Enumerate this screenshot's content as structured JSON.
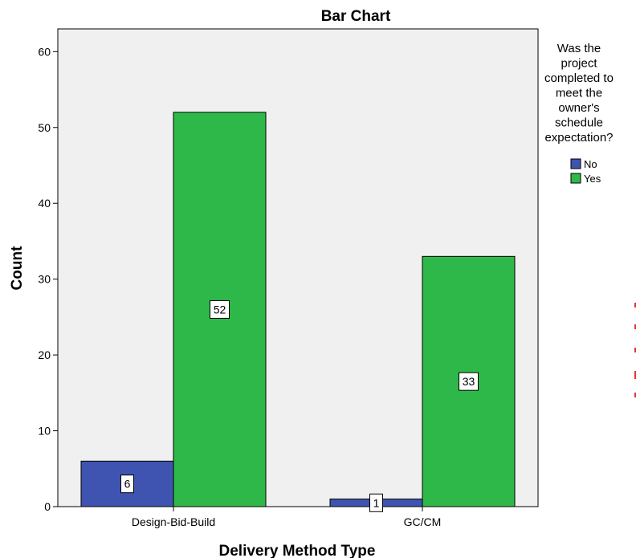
{
  "chart_data": {
    "type": "bar",
    "title": "Bar Chart",
    "xlabel": "Delivery Method Type",
    "ylabel": "Count",
    "categories": [
      "Design-Bid-Build",
      "GC/CM"
    ],
    "series": [
      {
        "name": "No",
        "values": [
          6,
          1
        ],
        "color": "#3f54b0"
      },
      {
        "name": "Yes",
        "values": [
          52,
          33
        ],
        "color": "#2fb84a"
      }
    ],
    "ylim": [
      0,
      63
    ],
    "yticks": [
      0,
      10,
      20,
      30,
      40,
      50,
      60
    ],
    "grid": false,
    "plot_background": "#f0f0f0",
    "legend": {
      "placement": "right",
      "title_lines": [
        "Was the",
        "project",
        "completed to",
        "meet the",
        "owner's",
        "schedule",
        "expectation?"
      ]
    }
  }
}
